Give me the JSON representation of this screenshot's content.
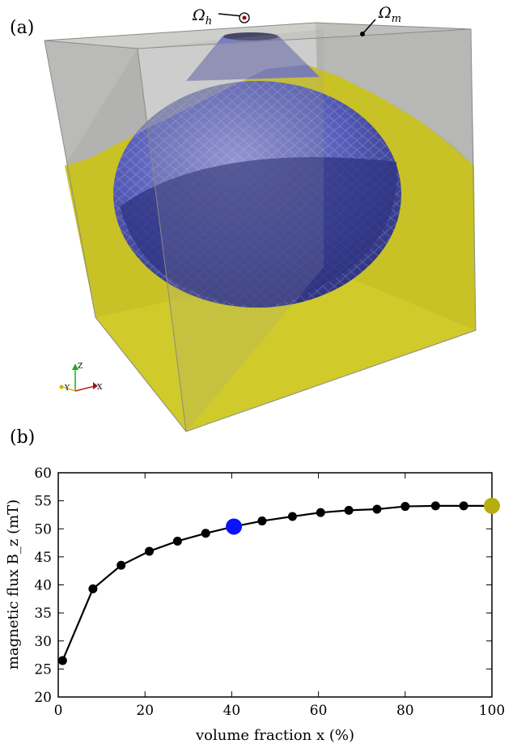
{
  "panel_a": {
    "label": "(a)",
    "omega_h_symbol": "Ω",
    "omega_h_sub": "h",
    "omega_m_symbol": "Ω",
    "omega_m_sub": "m",
    "axis_triad": {
      "z": "Z",
      "y": "Y",
      "x": "X"
    },
    "colors": {
      "box_gray": "#a8a8a8",
      "yellow_fill": "#c8c21f",
      "sphere_blue": "#6a6fc8",
      "sphere_dark": "#2d3380"
    }
  },
  "panel_b": {
    "label": "(b)"
  },
  "chart_data": {
    "type": "line",
    "xlabel": "volume fraction x (%)",
    "ylabel": "magnetic flux B_z (mT)",
    "xlim": [
      0,
      100
    ],
    "ylim": [
      20,
      60
    ],
    "xticks": [
      "0",
      "20",
      "40",
      "60",
      "80",
      "100"
    ],
    "yticks": [
      "20",
      "25",
      "30",
      "35",
      "40",
      "45",
      "50",
      "55",
      "60"
    ],
    "grid": false,
    "series": [
      {
        "x": [
          1,
          8,
          14.5,
          21,
          27.5,
          34,
          40.5,
          47,
          54,
          60.5,
          67,
          73.5,
          80,
          87,
          93.5,
          100
        ],
        "y": [
          26.5,
          39.3,
          43.5,
          46.0,
          47.8,
          49.2,
          50.4,
          51.4,
          52.2,
          52.9,
          53.3,
          53.5,
          54.0,
          54.1,
          54.1,
          54.1
        ],
        "color": "#000000"
      }
    ],
    "highlights": [
      {
        "x": 40.5,
        "y": 50.4,
        "color": "#0a12ff"
      },
      {
        "x": 100,
        "y": 54.1,
        "color": "#b5ae0e"
      }
    ]
  }
}
